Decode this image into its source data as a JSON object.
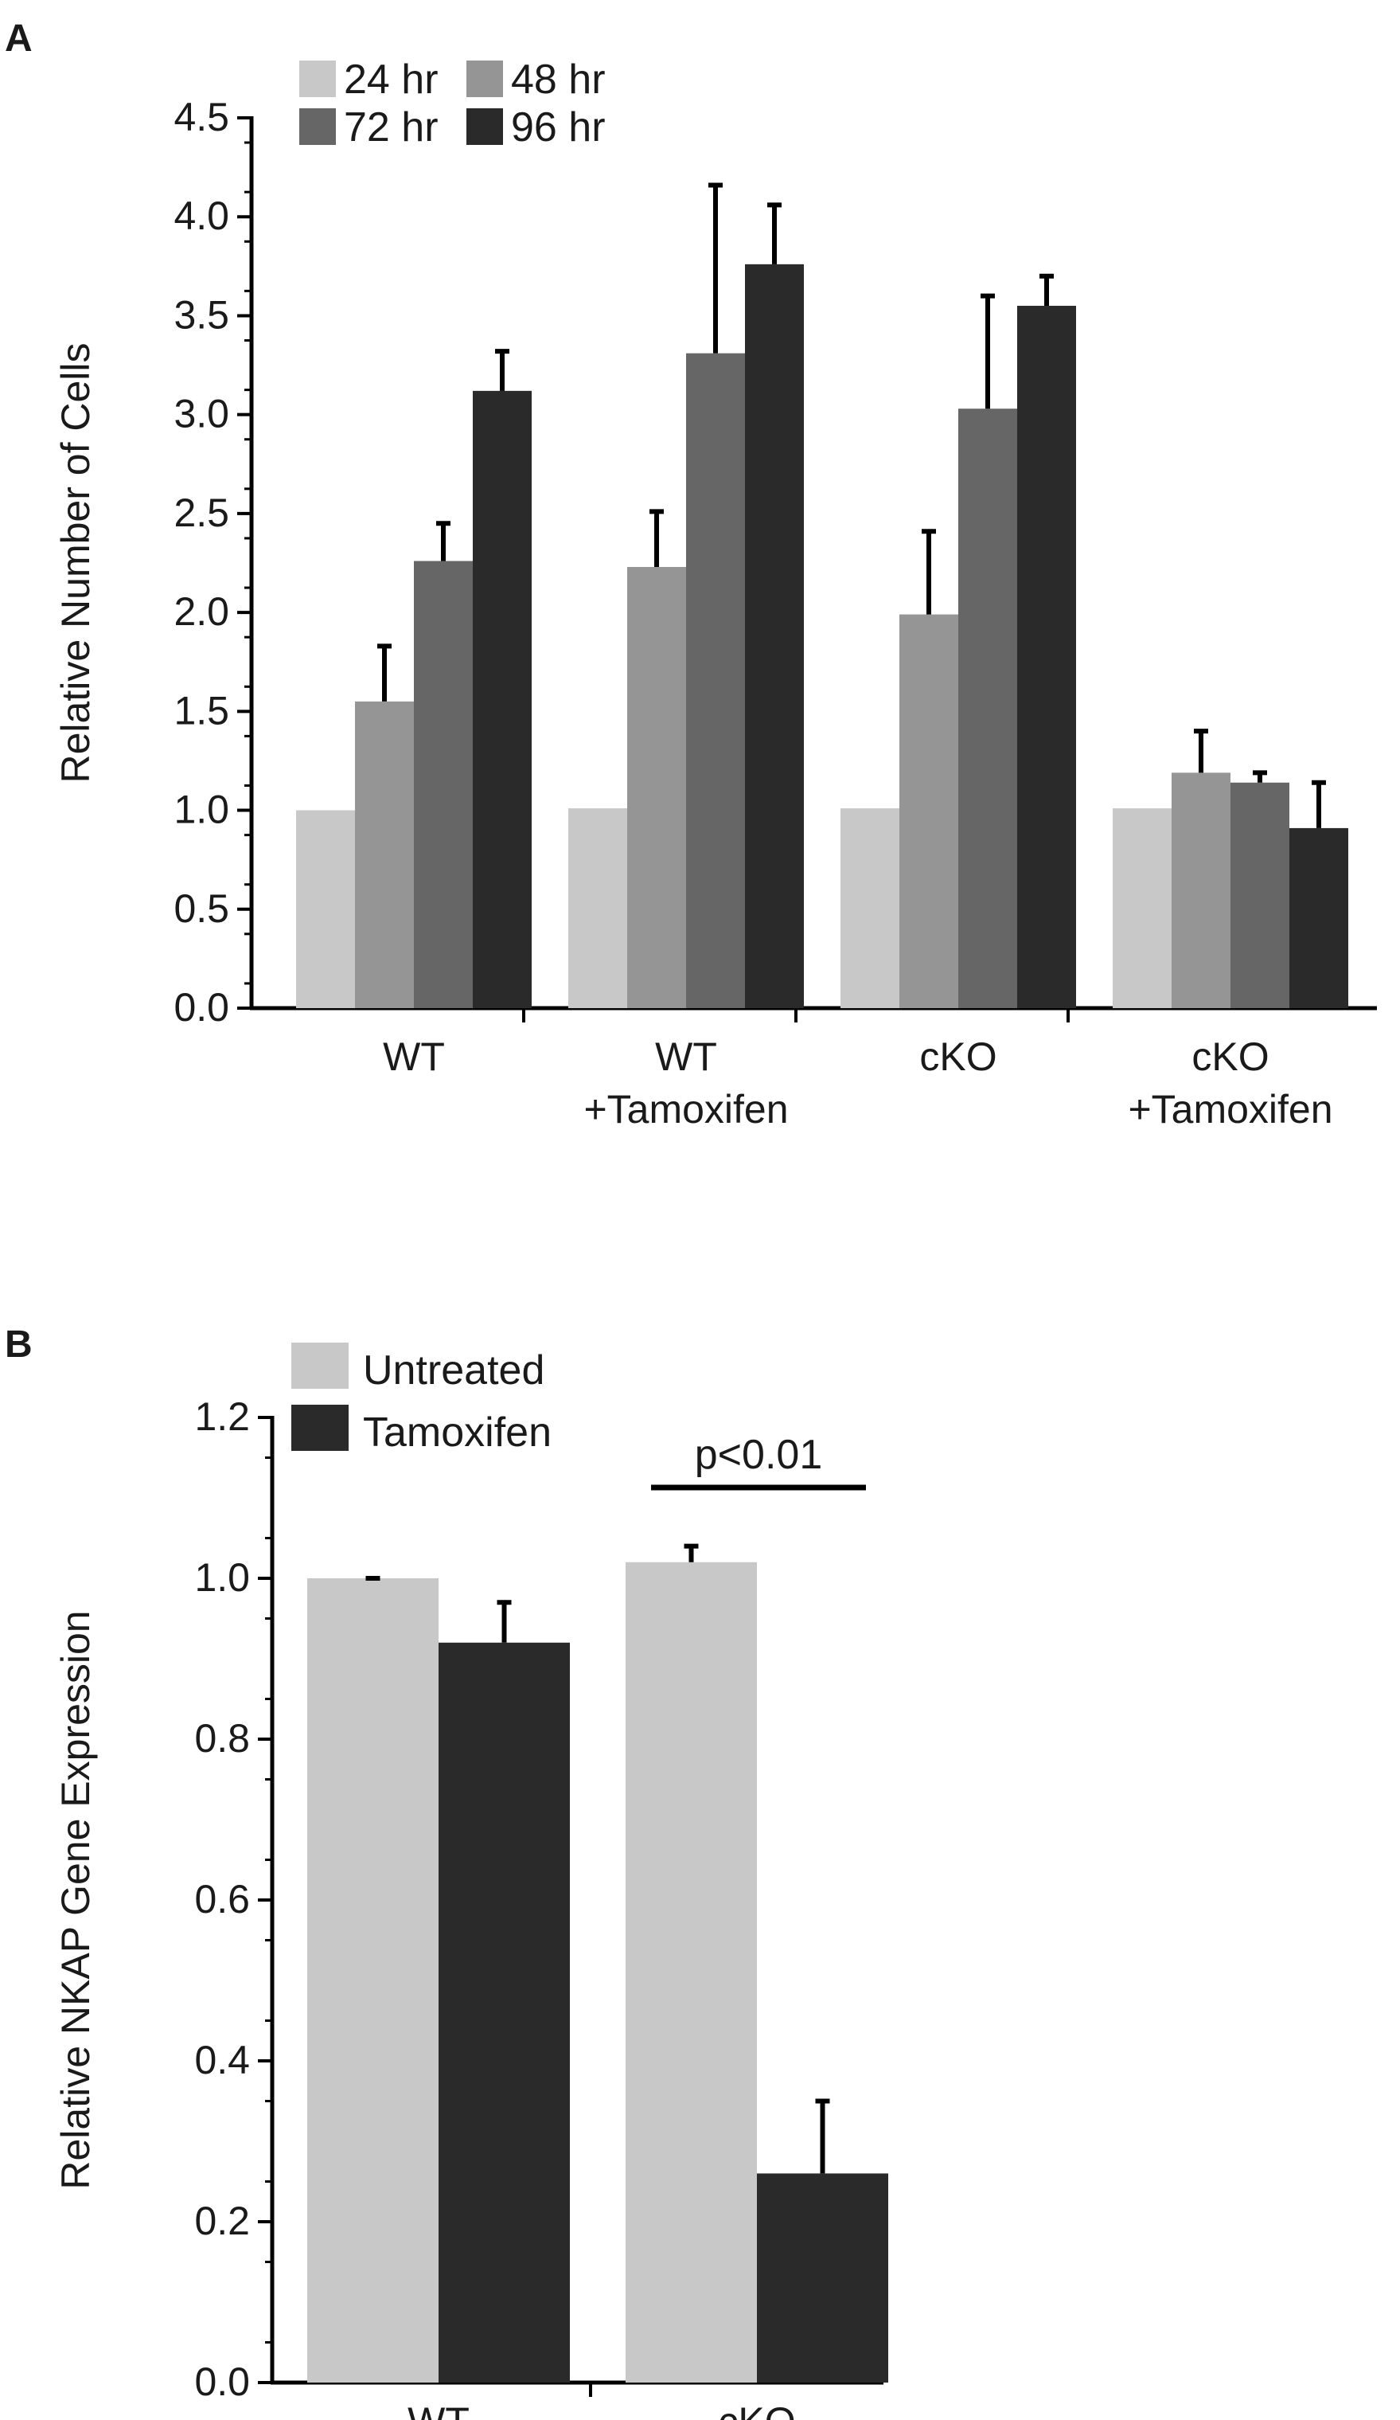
{
  "chart_data": [
    {
      "panel": "A",
      "type": "bar",
      "ylabel": "Relative Number of Cells",
      "xlabel": "",
      "ylim": [
        0,
        4.5
      ],
      "yticks": [
        "0.0",
        "0.5",
        "1.0",
        "1.5",
        "2.0",
        "2.5",
        "3.0",
        "3.5",
        "4.0",
        "4.5"
      ],
      "categories": [
        [
          "WT"
        ],
        [
          "WT",
          "+Tamoxifen"
        ],
        [
          "cKO"
        ],
        [
          "cKO",
          "+Tamoxifen"
        ]
      ],
      "series": [
        {
          "name": "24 hr",
          "color": "#c8c8c8",
          "values": [
            1.0,
            1.01,
            1.01,
            1.01
          ],
          "errors": [
            0.0,
            0.0,
            0.0,
            0.0
          ]
        },
        {
          "name": "48 hr",
          "color": "#959595",
          "values": [
            1.55,
            2.23,
            1.99,
            1.19
          ],
          "errors": [
            0.28,
            0.28,
            0.42,
            0.21
          ]
        },
        {
          "name": "72 hr",
          "color": "#666666",
          "values": [
            2.26,
            3.31,
            3.03,
            1.14
          ],
          "errors": [
            0.19,
            0.85,
            0.57,
            0.05
          ]
        },
        {
          "name": "96 hr",
          "color": "#2a2a2a",
          "values": [
            3.12,
            3.76,
            3.55,
            0.91
          ],
          "errors": [
            0.2,
            0.3,
            0.15,
            0.23
          ]
        }
      ],
      "legend_position": "top-left"
    },
    {
      "panel": "B",
      "type": "bar",
      "ylabel": "Relative NKAP Gene Expression",
      "xlabel": "",
      "ylim": [
        0,
        1.2
      ],
      "yticks": [
        "0.0",
        "0.2",
        "0.4",
        "0.6",
        "0.8",
        "1.0",
        "1.2"
      ],
      "categories": [
        [
          "WT"
        ],
        [
          "cKO"
        ]
      ],
      "series": [
        {
          "name": "Untreated",
          "color": "#c8c8c8",
          "values": [
            1.0,
            1.02
          ],
          "errors": [
            0.0,
            0.02
          ]
        },
        {
          "name": "Tamoxifen",
          "color": "#2a2a2a",
          "values": [
            0.92,
            0.26
          ],
          "errors": [
            0.05,
            0.09
          ]
        }
      ],
      "annotation": {
        "text": "p<0.01",
        "category": "cKO"
      },
      "legend_position": "top-left"
    }
  ],
  "panel_labels": {
    "a": "A",
    "b": "B"
  }
}
